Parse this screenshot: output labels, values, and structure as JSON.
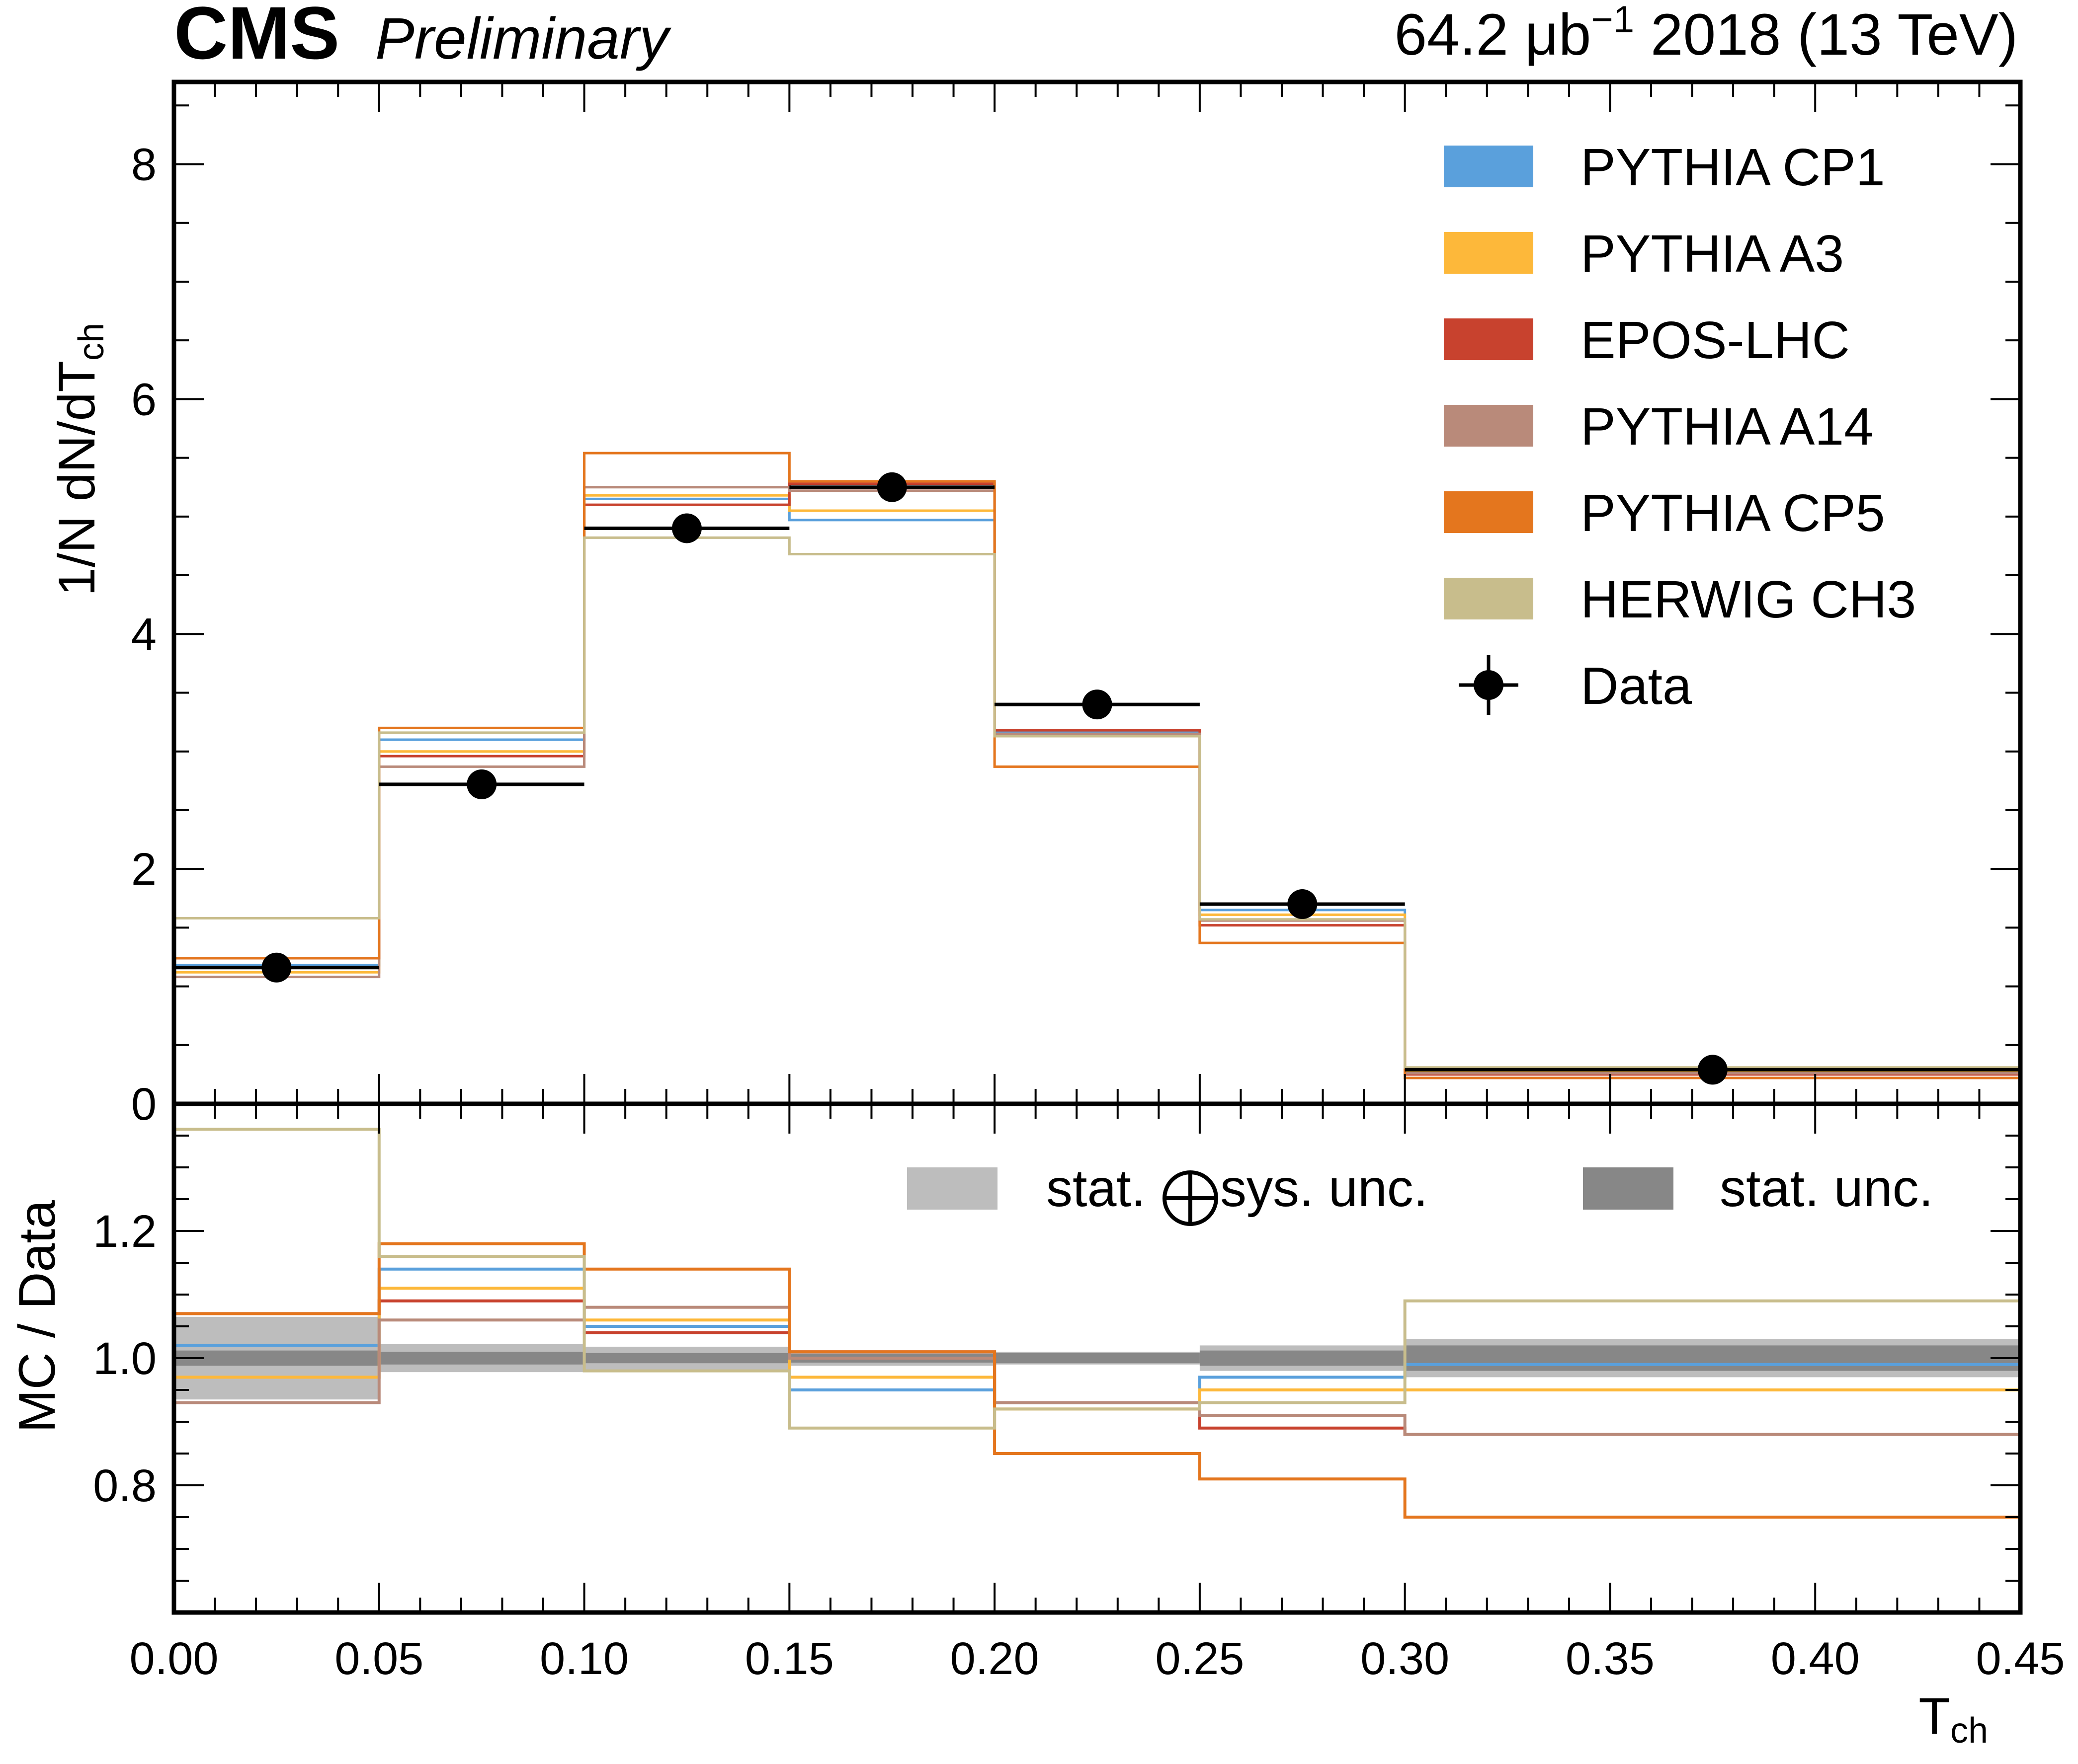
{
  "header": {
    "experiment": "CMS",
    "status": "Preliminary",
    "lumi_prefix": "64.2 μb",
    "lumi_exp": "−1",
    "lumi_suffix": " 2018 (13 TeV)"
  },
  "colors": {
    "CP1": "#5aa0dc",
    "A3": "#fdb83a",
    "EPOS": "#c8422e",
    "A14": "#b98a7a",
    "CP5": "#e4761e",
    "CH3": "#c8bd8c",
    "data": "#000000",
    "stat_sys_band": "#bdbdbd",
    "stat_band": "#878787"
  },
  "chart_data": {
    "type": "line",
    "subtype": "step-histogram-with-ratio",
    "bin_edges": [
      0.0,
      0.05,
      0.1,
      0.15,
      0.2,
      0.25,
      0.3,
      0.45
    ],
    "xlim": [
      0.0,
      0.45
    ],
    "xticks": [
      "0.00",
      "0.05",
      "0.10",
      "0.15",
      "0.20",
      "0.25",
      "0.30",
      "0.35",
      "0.40",
      "0.45"
    ],
    "xlabel_main": "T",
    "xlabel_sub": "ch",
    "top": {
      "ylabel_main": "1/N dN/dT",
      "ylabel_sub": "ch",
      "ylim": [
        0,
        8.7
      ],
      "yticks": [
        "0",
        "2",
        "4",
        "6",
        "8"
      ],
      "data": {
        "name": "Data",
        "x": [
          0.025,
          0.075,
          0.125,
          0.175,
          0.225,
          0.275,
          0.375
        ],
        "y": [
          1.16,
          2.72,
          4.9,
          5.25,
          3.4,
          1.7,
          0.29
        ]
      },
      "series": [
        {
          "key": "CP1",
          "name": "PYTHIA CP1",
          "values": [
            1.18,
            3.1,
            5.15,
            4.97,
            3.16,
            1.65,
            0.29
          ]
        },
        {
          "key": "A3",
          "name": "PYTHIA A3",
          "values": [
            1.12,
            3.0,
            5.18,
            5.05,
            3.14,
            1.61,
            0.28
          ]
        },
        {
          "key": "EPOS",
          "name": "EPOS-LHC",
          "values": [
            1.24,
            2.96,
            5.1,
            5.28,
            3.18,
            1.52,
            0.25
          ]
        },
        {
          "key": "A14",
          "name": "PYTHIA A14",
          "values": [
            1.08,
            2.87,
            5.25,
            5.22,
            3.15,
            1.56,
            0.26
          ]
        },
        {
          "key": "CP5",
          "name": "PYTHIA CP5",
          "values": [
            1.24,
            3.2,
            5.54,
            5.3,
            2.87,
            1.37,
            0.22
          ]
        },
        {
          "key": "CH3",
          "name": "HERWIG CH3",
          "values": [
            1.58,
            3.16,
            4.82,
            4.68,
            3.13,
            1.57,
            0.31
          ]
        }
      ]
    },
    "bottom": {
      "ylabel": "MC / Data",
      "ylim": [
        0.6,
        1.4
      ],
      "yticks": [
        "0.8",
        "1.0",
        "1.2"
      ],
      "ratios": [
        {
          "key": "CP1",
          "values": [
            1.02,
            1.14,
            1.05,
            0.95,
            0.93,
            0.97,
            0.99
          ]
        },
        {
          "key": "A3",
          "values": [
            0.97,
            1.11,
            1.06,
            0.97,
            0.92,
            0.95,
            0.95
          ]
        },
        {
          "key": "EPOS",
          "values": [
            1.07,
            1.09,
            1.04,
            1.01,
            0.93,
            0.89,
            0.88
          ]
        },
        {
          "key": "A14",
          "values": [
            0.93,
            1.06,
            1.08,
            1.0,
            0.93,
            0.91,
            0.88
          ]
        },
        {
          "key": "CP5",
          "values": [
            1.07,
            1.18,
            1.14,
            1.01,
            0.85,
            0.81,
            0.75
          ]
        },
        {
          "key": "CH3",
          "values": [
            1.36,
            1.16,
            0.98,
            0.89,
            0.92,
            0.93,
            1.09
          ]
        }
      ],
      "stat_sys_unc": [
        0.065,
        0.022,
        0.018,
        0.012,
        0.01,
        0.02,
        0.03
      ],
      "stat_unc": [
        0.012,
        0.01,
        0.008,
        0.007,
        0.008,
        0.012,
        0.02
      ],
      "band_legend": {
        "stat_sys": "stat.",
        "stat_sys_tail": "sys. unc.",
        "stat": "stat. unc."
      }
    }
  }
}
